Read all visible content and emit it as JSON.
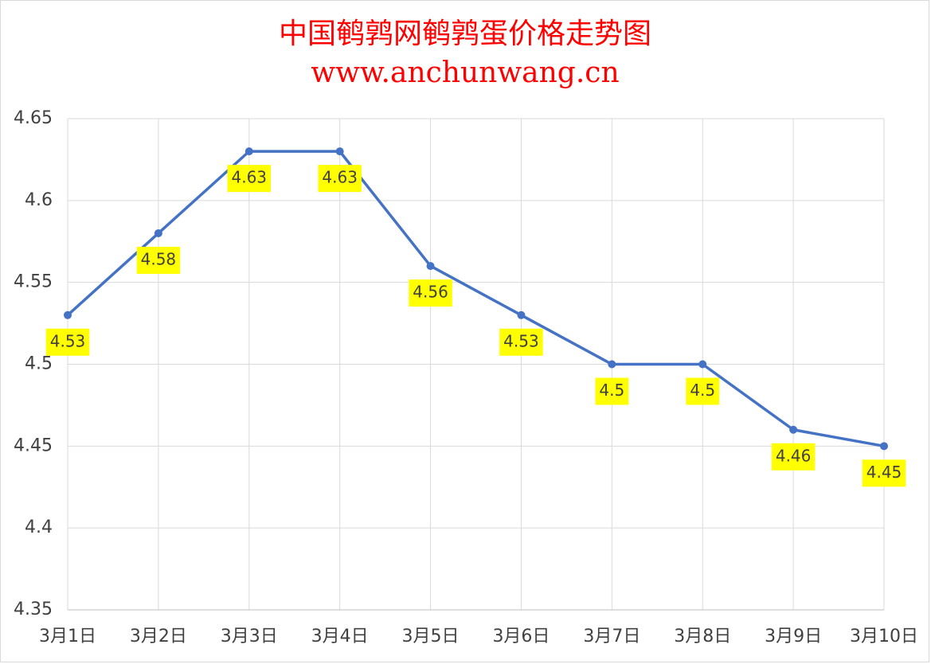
{
  "chart_data": {
    "type": "line",
    "title": "中国鹌鹑网鹌鹑蛋价格走势图",
    "subtitle": "www.anchunwang.cn",
    "categories": [
      "3月1日",
      "3月2日",
      "3月3日",
      "3月4日",
      "3月5日",
      "3月6日",
      "3月7日",
      "3月8日",
      "3月9日",
      "3月10日"
    ],
    "values": [
      4.53,
      4.58,
      4.63,
      4.63,
      4.56,
      4.53,
      4.5,
      4.5,
      4.46,
      4.45
    ],
    "color": "#4472c4",
    "label_color": "#ffff00",
    "ylim": [
      4.35,
      4.65
    ],
    "yticks": [
      4.35,
      4.4,
      4.45,
      4.5,
      4.55,
      4.6,
      4.65
    ],
    "grid": true
  }
}
